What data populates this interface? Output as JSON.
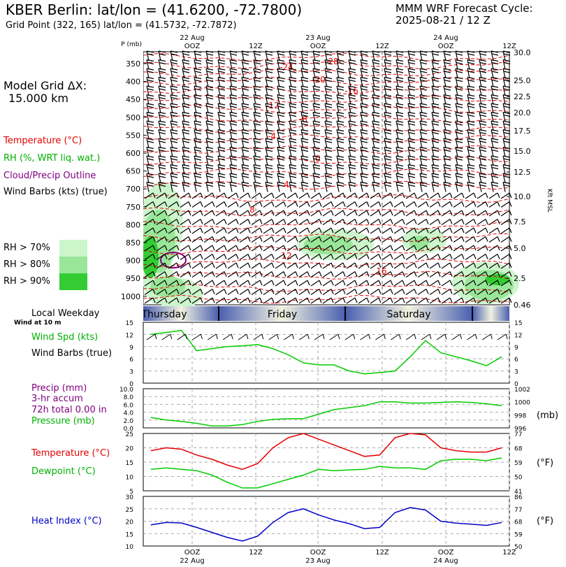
{
  "header": {
    "title": "KBER Berlin:  lat/lon = (41.6200, -72.7800)",
    "grid_point": "Grid Point (322, 165) lat/lon = (41.5732, -72.7872)",
    "model": "MMM WRF Forecast Cycle:",
    "cycle": "2025-08-21 / 12  Z"
  },
  "legend": {
    "grid_label": "Model Grid ΔX:",
    "grid_value": "15.000 km",
    "temperature": "Temperature (°C)",
    "rh": "RH (%, WRT liq. wat.)",
    "cloud": "Cloud/Precip Outline",
    "wind": "Wind Barbs (kts) (true)",
    "rh70": "RH > 70%",
    "rh80": "RH > 80%",
    "rh90": "RH > 90%",
    "colors": {
      "rh70": "#ccf5cc",
      "rh80": "#99e699",
      "rh90": "#33cc33",
      "temp": "#e60000",
      "rh_line": "#00cc00",
      "cloud": "#800080",
      "heat": "#0000c8"
    }
  },
  "top_axis": {
    "dates": [
      "22 Aug",
      "23 Aug",
      "24 Aug"
    ],
    "times": [
      "OOZ",
      "12Z",
      "OOZ",
      "12Z",
      "OOZ",
      "12Z"
    ]
  },
  "bottom_axis": {
    "times": [
      "OOZ",
      "12Z",
      "OOZ",
      "12Z",
      "OOZ",
      "12Z"
    ],
    "dates": [
      "22 Aug",
      "23 Aug",
      "24 Aug"
    ]
  },
  "xsection": {
    "ylabel": "P (mb)",
    "p_ticks": [
      "350",
      "400",
      "450",
      "500",
      "550",
      "600",
      "650",
      "700",
      "750",
      "800",
      "850",
      "900",
      "950",
      "1000"
    ],
    "kft_ticks": [
      "30.0",
      "25.0",
      "22.5",
      "20.0",
      "17.5",
      "15.0",
      "12.5",
      "10.0",
      "7.5",
      "5.0",
      "2.5",
      "0.46"
    ],
    "kft_label": "Kft MSL",
    "temp_labels": [
      "-28",
      "-24",
      "-20",
      "-16",
      "-12",
      "-8",
      "-4",
      "0",
      "4",
      "8",
      "12",
      "16"
    ]
  },
  "weekday": {
    "title": "Local Weekday",
    "subtitle": "Wind at 10 m",
    "days": [
      "Thursday",
      "Friday",
      "Saturday"
    ]
  },
  "panels": {
    "wind": {
      "label1": "Wind Spd (kts)",
      "label2": "Wind Barbs (true)",
      "ticks": [
        "15",
        "12",
        "9",
        "6",
        "3",
        "0"
      ]
    },
    "precip": {
      "label1": "Precip (mm)",
      "label2": "3-hr accum",
      "label3": "72h total 0.00 in",
      "label4": "Pressure (mb)",
      "ticks": [
        "10.0",
        "8.0",
        "6.0",
        "4.0",
        "2.0",
        "0.0"
      ],
      "rticks": [
        "1002",
        "1000",
        "998",
        "996"
      ],
      "runit": "(mb)"
    },
    "temp": {
      "label1": "Temperature (°C)",
      "label2": "Dewpoint (°C)",
      "ticks": [
        "25",
        "20",
        "15",
        "10",
        "5"
      ],
      "rticks": [
        "77",
        "68",
        "59",
        "50",
        "41"
      ],
      "runit": "(°F)"
    },
    "heat": {
      "label1": "Heat Index (°C)",
      "ticks": [
        "30",
        "25",
        "20",
        "15",
        "10"
      ],
      "rticks": [
        "86",
        "77",
        "68",
        "59",
        "50"
      ],
      "runit": "(°F)"
    }
  },
  "chart_data": [
    {
      "type": "line",
      "title": "Wind Spd (kts)",
      "x": [
        "21/15Z",
        "21/18Z",
        "21/21Z",
        "22/00Z",
        "22/03Z",
        "22/06Z",
        "22/09Z",
        "22/12Z",
        "22/15Z",
        "22/18Z",
        "22/21Z",
        "23/00Z",
        "23/03Z",
        "23/06Z",
        "23/09Z",
        "23/12Z",
        "23/15Z",
        "23/18Z",
        "23/21Z",
        "24/00Z",
        "24/03Z",
        "24/06Z",
        "24/09Z",
        "24/12Z"
      ],
      "series": [
        {
          "name": "Wind Spd (kts)",
          "values": [
            12,
            12.5,
            13,
            8,
            8.5,
            9,
            9.2,
            9.5,
            8.5,
            7,
            5,
            4.5,
            4.5,
            3,
            2.3,
            2.6,
            3,
            6.5,
            10.5,
            7.5,
            6.5,
            5.5,
            4.3,
            6.5
          ]
        }
      ],
      "ylim": [
        0,
        15
      ]
    },
    {
      "type": "line",
      "title": "Pressure (mb)",
      "x": [
        "21/15Z",
        "21/18Z",
        "21/21Z",
        "22/00Z",
        "22/03Z",
        "22/06Z",
        "22/09Z",
        "22/12Z",
        "22/15Z",
        "22/18Z",
        "22/21Z",
        "23/00Z",
        "23/03Z",
        "23/06Z",
        "23/09Z",
        "23/12Z",
        "23/15Z",
        "23/18Z",
        "23/21Z",
        "24/00Z",
        "24/03Z",
        "24/06Z",
        "24/09Z",
        "24/12Z"
      ],
      "series": [
        {
          "name": "Pressure (mb)",
          "values": [
            997.6,
            997.2,
            997.0,
            996.7,
            996.3,
            996.3,
            996.5,
            997.0,
            997.3,
            997.4,
            997.4,
            998.1,
            998.8,
            999.1,
            999.4,
            1000.0,
            1000.0,
            999.8,
            999.8,
            999.9,
            1000.0,
            999.9,
            999.7,
            999.4
          ]
        }
      ],
      "precip_values": [
        0,
        0,
        0,
        0,
        0,
        0,
        0,
        0,
        0,
        0,
        0,
        0,
        0,
        0,
        0,
        0,
        0,
        0,
        0,
        0,
        0,
        0,
        0,
        0
      ],
      "ylim": [
        996,
        1002
      ]
    },
    {
      "type": "line",
      "title": "Temperature / Dewpoint (°C)",
      "x": [
        "21/15Z",
        "21/18Z",
        "21/21Z",
        "22/00Z",
        "22/03Z",
        "22/06Z",
        "22/09Z",
        "22/12Z",
        "22/15Z",
        "22/18Z",
        "22/21Z",
        "23/00Z",
        "23/03Z",
        "23/06Z",
        "23/09Z",
        "23/12Z",
        "23/15Z",
        "23/18Z",
        "23/21Z",
        "24/00Z",
        "24/03Z",
        "24/06Z",
        "24/09Z",
        "24/12Z"
      ],
      "series": [
        {
          "name": "Temperature (°C)",
          "values": [
            19,
            20,
            19.5,
            17.5,
            16,
            14,
            12.5,
            14.5,
            20,
            23.5,
            25,
            23,
            21,
            19,
            17,
            17.5,
            23.5,
            25,
            24.5,
            20,
            19,
            18.5,
            18.5,
            20
          ]
        },
        {
          "name": "Dewpoint (°C)",
          "values": [
            12.5,
            13,
            12.5,
            12,
            10.5,
            8,
            6,
            6,
            7.5,
            9,
            10.5,
            12.5,
            12,
            12.3,
            12.5,
            13.5,
            13,
            13,
            12.5,
            15.5,
            16,
            16,
            15.5,
            16.5
          ]
        }
      ],
      "ylim": [
        5,
        25
      ]
    },
    {
      "type": "line",
      "title": "Heat Index (°C)",
      "x": [
        "21/15Z",
        "21/18Z",
        "21/21Z",
        "22/00Z",
        "22/03Z",
        "22/06Z",
        "22/09Z",
        "22/12Z",
        "22/15Z",
        "22/18Z",
        "22/21Z",
        "23/00Z",
        "23/03Z",
        "23/06Z",
        "23/09Z",
        "23/12Z",
        "23/15Z",
        "23/18Z",
        "23/21Z",
        "24/00Z",
        "24/03Z",
        "24/06Z",
        "24/09Z",
        "24/12Z"
      ],
      "series": [
        {
          "name": "Heat Index (°C)",
          "values": [
            18.5,
            19.5,
            19.3,
            17.5,
            15.5,
            13.5,
            12,
            14,
            19.5,
            23.5,
            25,
            22.5,
            20.5,
            19,
            17,
            17.5,
            23.5,
            25.5,
            24.5,
            20,
            19.2,
            18.8,
            18.3,
            19.5
          ]
        }
      ],
      "ylim": [
        10,
        30
      ]
    }
  ]
}
